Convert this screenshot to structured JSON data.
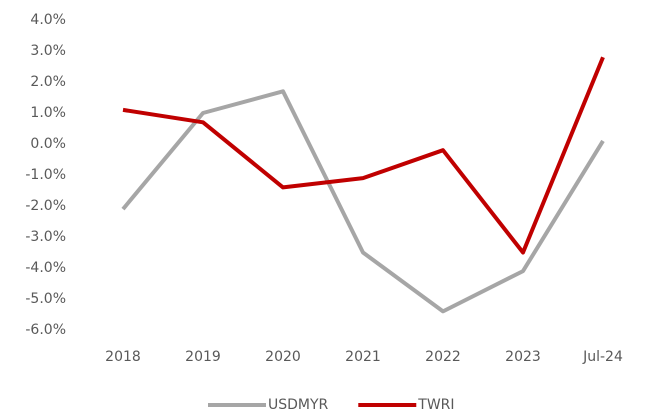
{
  "chart_data": {
    "type": "line",
    "categories": [
      "2018",
      "2019",
      "2020",
      "2021",
      "2022",
      "2023",
      "Jul-24"
    ],
    "series": [
      {
        "name": "USDMYR",
        "color": "#a6a6a6",
        "values": [
          -2.1,
          1.0,
          1.7,
          -3.5,
          -5.4,
          -4.1,
          0.1
        ]
      },
      {
        "name": "TWRI",
        "color": "#c00000",
        "values": [
          1.1,
          0.7,
          -1.4,
          -1.1,
          -0.2,
          -3.5,
          2.8
        ]
      }
    ],
    "ylim": [
      -6,
      4
    ],
    "yticks": [
      {
        "value": -6,
        "label": "-6.0%"
      },
      {
        "value": -5,
        "label": "-5.0%"
      },
      {
        "value": -4,
        "label": "-4.0%"
      },
      {
        "value": -3,
        "label": "-3.0%"
      },
      {
        "value": -2,
        "label": "-2.0%"
      },
      {
        "value": -1,
        "label": "-1.0%"
      },
      {
        "value": 0,
        "label": "0.0%"
      },
      {
        "value": 1,
        "label": "1.0%"
      },
      {
        "value": 2,
        "label": "2.0%"
      },
      {
        "value": 3,
        "label": "3.0%"
      },
      {
        "value": 4,
        "label": "4.0%"
      }
    ],
    "grid": false,
    "legend": "bottom"
  }
}
